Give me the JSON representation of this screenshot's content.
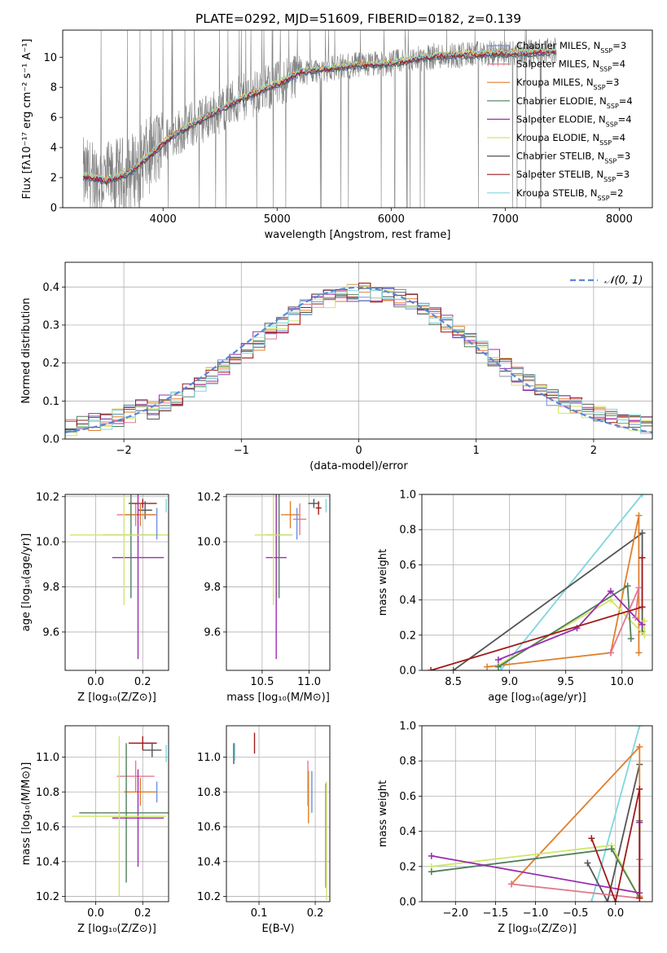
{
  "title": "PLATE=0292, MJD=51609, FIBERID=0182, z=0.139",
  "legend": [
    {
      "label": "Chabrier MILES, N",
      "sub": "SSP",
      "tail": "=3",
      "color": "#6d8fdf"
    },
    {
      "label": "Salpeter MILES, N",
      "sub": "SSP",
      "tail": "=4",
      "color": "#e07a8c"
    },
    {
      "label": "Kroupa MILES, N",
      "sub": "SSP",
      "tail": "=3",
      "color": "#e07f2b"
    },
    {
      "label": "Chabrier ELODIE, N",
      "sub": "SSP",
      "tail": "=4",
      "color": "#4f7f5a"
    },
    {
      "label": "Salpeter ELODIE, N",
      "sub": "SSP",
      "tail": "=4",
      "color": "#9b2db0"
    },
    {
      "label": "Kroupa ELODIE, N",
      "sub": "SSP",
      "tail": "=4",
      "color": "#cfe66a"
    },
    {
      "label": "Chabrier STELIB, N",
      "sub": "SSP",
      "tail": "=3",
      "color": "#555555"
    },
    {
      "label": "Salpeter STELIB, N",
      "sub": "SSP",
      "tail": "=3",
      "color": "#a11a1a"
    },
    {
      "label": "Kroupa STELIB, N",
      "sub": "SSP",
      "tail": "=2",
      "color": "#7fd6de"
    }
  ],
  "normal_label": "𝒩(0, 1)",
  "chart_data": [
    {
      "id": "spectrum",
      "type": "line",
      "xlabel": "wavelength [Angstrom, rest frame]",
      "ylabel": "Flux [fλ10⁻¹⁷ erg cm⁻² s⁻¹ A⁻¹]",
      "xlim": [
        3120,
        8290
      ],
      "ylim": [
        0,
        11.8
      ],
      "xticks": [
        4000,
        5000,
        6000,
        7000,
        8000
      ],
      "yticks": [
        0,
        2,
        4,
        6,
        8,
        10
      ],
      "data_color": "#808080",
      "data_trend": {
        "x": [
          3300,
          3500,
          3700,
          3900,
          4100,
          4400,
          4700,
          5000,
          5200,
          5600,
          6000,
          6400,
          6800,
          7200,
          7400
        ],
        "y": [
          2.1,
          1.8,
          2.3,
          3.6,
          4.9,
          6.1,
          7.3,
          8.2,
          9.0,
          9.4,
          9.6,
          10.1,
          10.2,
          10.3,
          10.4
        ]
      },
      "model_range": [
        3300,
        7450
      ]
    },
    {
      "id": "residuals",
      "type": "histogram",
      "xlabel": "(data-model)/error",
      "ylabel": "Normed distribution",
      "xlim": [
        -2.5,
        2.5
      ],
      "ylim": [
        0,
        0.465
      ],
      "xticks": [
        -2,
        -1,
        0,
        1,
        2
      ],
      "yticks": [
        0.0,
        0.1,
        0.2,
        0.3,
        0.4
      ],
      "bin_width": 0.1,
      "normal": {
        "mu": 0,
        "sigma": 1,
        "color": "#5b86d8"
      }
    },
    {
      "id": "z-age",
      "type": "scatter",
      "xlabel": "Z [log₁₀(Z/Z⊙)]",
      "ylabel": "age  [log₁₀(age/yr)]",
      "xlim": [
        -0.13,
        0.31
      ],
      "ylim": [
        9.43,
        10.21
      ],
      "xticks": [
        0.0,
        0.2
      ],
      "yticks": [
        9.6,
        9.8,
        10.0,
        10.2
      ],
      "points": [
        {
          "x": 0.17,
          "y": 10.12,
          "xerr": 0.08,
          "yerr": 0.05,
          "color": "#e07a8c"
        },
        {
          "x": 0.2,
          "y": 10.17,
          "xerr": 0.06,
          "yerr": 0.0,
          "color": "#a11a1a"
        },
        {
          "x": 0.21,
          "y": 10.14,
          "xerr": 0.03,
          "yerr": 0.04,
          "color": "#555555"
        },
        {
          "x": 0.19,
          "y": 10.12,
          "xerr": 0.07,
          "yerr": 0.05,
          "color": "#e07f2b"
        },
        {
          "x": 0.18,
          "y": 9.93,
          "xerr": 0.11,
          "yerr": 0.45,
          "color": "#9b2db0"
        },
        {
          "x": 0.15,
          "y": 10.03,
          "xerr": 0.12,
          "yerr": 0.28,
          "color": "#4f7f5a"
        },
        {
          "x": 0.12,
          "y": 10.03,
          "xerr": 0.23,
          "yerr": 0.31,
          "color": "#cfe66a"
        },
        {
          "x": 0.26,
          "y": 10.08,
          "xerr": 0.0,
          "yerr": 0.07,
          "color": "#6d8fdf"
        },
        {
          "x": 0.3,
          "y": 10.16,
          "xerr": 0.0,
          "yerr": 0.03,
          "color": "#7fd6de"
        }
      ]
    },
    {
      "id": "mass-age",
      "type": "scatter",
      "xlabel": "mass [log₁₀(M/M⊙)]",
      "ylabel": "",
      "xlim": [
        10.12,
        11.22
      ],
      "ylim": [
        9.43,
        10.21
      ],
      "xticks": [
        10.5,
        11.0
      ],
      "yticks": [
        9.6,
        9.8,
        10.0,
        10.2
      ],
      "points": [
        {
          "x": 10.9,
          "y": 10.1,
          "xerr": 0.07,
          "yerr": 0.07,
          "color": "#e07a8c"
        },
        {
          "x": 11.1,
          "y": 10.15,
          "xerr": 0.03,
          "yerr": 0.03,
          "color": "#a11a1a"
        },
        {
          "x": 11.05,
          "y": 10.17,
          "xerr": 0.06,
          "yerr": 0.0,
          "color": "#555555"
        },
        {
          "x": 10.8,
          "y": 10.12,
          "xerr": 0.1,
          "yerr": 0.06,
          "color": "#e07f2b"
        },
        {
          "x": 10.65,
          "y": 9.93,
          "xerr": 0.11,
          "yerr": 0.45,
          "color": "#9b2db0"
        },
        {
          "x": 10.68,
          "y": 10.03,
          "xerr": 0.14,
          "yerr": 0.28,
          "color": "#4f7f5a"
        },
        {
          "x": 10.62,
          "y": 10.03,
          "xerr": 0.2,
          "yerr": 0.31,
          "color": "#cfe66a"
        },
        {
          "x": 10.87,
          "y": 10.08,
          "xerr": 0.0,
          "yerr": 0.07,
          "color": "#6d8fdf"
        },
        {
          "x": 11.18,
          "y": 10.16,
          "xerr": 0.0,
          "yerr": 0.03,
          "color": "#7fd6de"
        }
      ]
    },
    {
      "id": "age-weight",
      "type": "line",
      "xlabel": "age  [log₁₀(age/yr)]",
      "ylabel": "mass weight",
      "xlim": [
        8.22,
        10.27
      ],
      "ylim": [
        0,
        1.0
      ],
      "xticks": [
        8.5,
        9.0,
        9.5,
        10.0
      ],
      "yticks": [
        0.0,
        0.2,
        0.4,
        0.6,
        0.8,
        1.0
      ],
      "series": [
        {
          "color": "#7fd6de",
          "x": [
            8.92,
            10.18
          ],
          "y": [
            0.0,
            1.0
          ]
        },
        {
          "color": "#555555",
          "x": [
            8.5,
            10.18,
            10.18
          ],
          "y": [
            0.0,
            0.78,
            0.22
          ]
        },
        {
          "color": "#e07f2b",
          "x": [
            8.8,
            9.9,
            10.15,
            10.15
          ],
          "y": [
            0.02,
            0.1,
            0.88,
            0.1
          ]
        },
        {
          "color": "#cfe66a",
          "x": [
            8.9,
            9.9,
            10.2,
            10.2
          ],
          "y": [
            0.03,
            0.4,
            0.2,
            0.28
          ]
        },
        {
          "color": "#4f7f5a",
          "x": [
            8.9,
            10.05,
            10.08
          ],
          "y": [
            0.02,
            0.48,
            0.18
          ]
        },
        {
          "color": "#9b2db0",
          "x": [
            8.9,
            9.6,
            9.9,
            10.18
          ],
          "y": [
            0.06,
            0.24,
            0.45,
            0.26
          ]
        },
        {
          "color": "#e07a8c",
          "x": [
            9.9,
            10.15,
            10.12
          ],
          "y": [
            0.1,
            0.47,
            0.3
          ]
        },
        {
          "color": "#a11a1a",
          "x": [
            8.3,
            10.18,
            10.18
          ],
          "y": [
            0.0,
            0.36,
            0.64
          ]
        }
      ]
    },
    {
      "id": "z-mass",
      "type": "scatter",
      "xlabel": "Z [log₁₀(Z/Z⊙)]",
      "ylabel": "mass [log₁₀(M/M⊙)]",
      "xlim": [
        -0.13,
        0.31
      ],
      "ylim": [
        10.17,
        11.18
      ],
      "xticks": [
        0.0,
        0.2
      ],
      "yticks": [
        10.2,
        10.4,
        10.6,
        10.8,
        11.0
      ],
      "points": [
        {
          "x": 0.2,
          "y": 11.08,
          "xerr": 0.06,
          "yerr": 0.04,
          "color": "#a11a1a"
        },
        {
          "x": 0.24,
          "y": 11.04,
          "xerr": 0.04,
          "yerr": 0.04,
          "color": "#555555"
        },
        {
          "x": 0.3,
          "y": 11.02,
          "xerr": 0.0,
          "yerr": 0.05,
          "color": "#7fd6de"
        },
        {
          "x": 0.17,
          "y": 10.89,
          "xerr": 0.08,
          "yerr": 0.09,
          "color": "#e07a8c"
        },
        {
          "x": 0.19,
          "y": 10.8,
          "xerr": 0.07,
          "yerr": 0.08,
          "color": "#e07f2b"
        },
        {
          "x": 0.26,
          "y": 10.8,
          "xerr": 0.0,
          "yerr": 0.06,
          "color": "#6d8fdf"
        },
        {
          "x": 0.18,
          "y": 10.65,
          "xerr": 0.11,
          "yerr": 0.28,
          "color": "#9b2db0"
        },
        {
          "x": 0.13,
          "y": 10.68,
          "xerr": 0.2,
          "yerr": 0.4,
          "color": "#4f7f5a"
        },
        {
          "x": 0.1,
          "y": 10.66,
          "xerr": 0.2,
          "yerr": 0.46,
          "color": "#cfe66a"
        }
      ]
    },
    {
      "id": "ebv-mass",
      "type": "scatter",
      "xlabel": "E(B-V)",
      "ylabel": "",
      "xlim": [
        0.042,
        0.226
      ],
      "ylim": [
        10.17,
        11.18
      ],
      "xticks": [
        0.1,
        0.2
      ],
      "yticks": [
        10.2,
        10.4,
        10.6,
        10.8,
        11.0
      ],
      "points": [
        {
          "x": 0.055,
          "y": 11.02,
          "xerr": 0.0,
          "yerr": 0.06,
          "color": "#555555"
        },
        {
          "x": 0.057,
          "y": 11.03,
          "xerr": 0.0,
          "yerr": 0.05,
          "color": "#7fd6de"
        },
        {
          "x": 0.092,
          "y": 11.08,
          "xerr": 0.0,
          "yerr": 0.06,
          "color": "#a11a1a"
        },
        {
          "x": 0.187,
          "y": 10.85,
          "xerr": 0.0,
          "yerr": 0.13,
          "color": "#e07a8c"
        },
        {
          "x": 0.188,
          "y": 10.77,
          "xerr": 0.0,
          "yerr": 0.15,
          "color": "#e07f2b"
        },
        {
          "x": 0.194,
          "y": 10.8,
          "xerr": 0.0,
          "yerr": 0.12,
          "color": "#6d8fdf"
        },
        {
          "x": 0.219,
          "y": 10.55,
          "xerr": 0.0,
          "yerr": 0.3,
          "color": "#9b2db0"
        },
        {
          "x": 0.22,
          "y": 10.52,
          "xerr": 0.0,
          "yerr": 0.34,
          "color": "#cfe66a"
        }
      ]
    },
    {
      "id": "z-weight",
      "type": "line",
      "xlabel": "Z [log₁₀(Z/Z⊙)]",
      "ylabel": "mass weight",
      "xlim": [
        -2.42,
        0.46
      ],
      "ylim": [
        0,
        1.0
      ],
      "xticks": [
        -2.0,
        -1.5,
        -1.0,
        -0.5,
        0.0
      ],
      "yticks": [
        0.0,
        0.2,
        0.4,
        0.6,
        0.8,
        1.0
      ],
      "series": [
        {
          "color": "#7fd6de",
          "x": [
            -0.3,
            0.3
          ],
          "y": [
            0.0,
            1.0
          ]
        },
        {
          "color": "#555555",
          "x": [
            -0.35,
            -0.1,
            0.3
          ],
          "y": [
            0.22,
            0.0,
            0.78
          ]
        },
        {
          "color": "#e07f2b",
          "x": [
            -1.3,
            0.3,
            0.3
          ],
          "y": [
            0.1,
            0.88,
            0.03
          ]
        },
        {
          "color": "#cfe66a",
          "x": [
            -2.3,
            -0.05,
            0.3,
            0.3
          ],
          "y": [
            0.2,
            0.32,
            0.02,
            0.4
          ]
        },
        {
          "color": "#4f7f5a",
          "x": [
            -2.3,
            -0.05,
            0.3,
            0.3
          ],
          "y": [
            0.17,
            0.3,
            0.02,
            0.46
          ]
        },
        {
          "color": "#9b2db0",
          "x": [
            -2.3,
            0.3,
            0.3
          ],
          "y": [
            0.26,
            0.05,
            0.45
          ]
        },
        {
          "color": "#e07a8c",
          "x": [
            -1.3,
            0.3,
            0.3
          ],
          "y": [
            0.1,
            0.02,
            0.24
          ]
        },
        {
          "color": "#a11a1a",
          "x": [
            -0.3,
            0.0,
            0.3,
            0.3
          ],
          "y": [
            0.36,
            0.0,
            0.64,
            0.02
          ]
        }
      ]
    }
  ]
}
